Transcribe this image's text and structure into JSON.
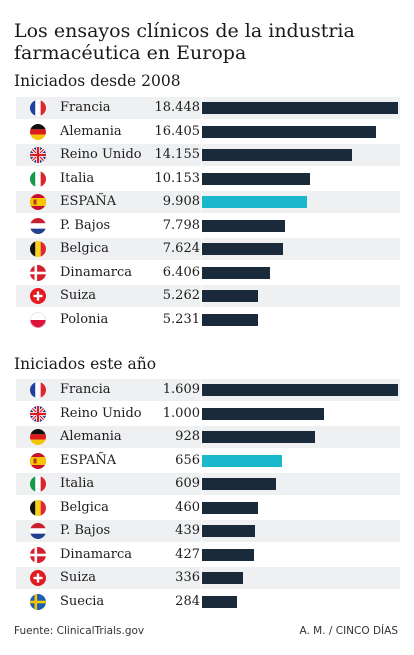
{
  "title": "Los ensayos clínicos de la industria farmacéutica en Europa",
  "footer": {
    "source": "Fuente: ClinicalTrials.gov",
    "credit": "A. M. / CINCO DÍAS"
  },
  "colors": {
    "bar": "#1a2a3b",
    "highlight": "#19b8cc",
    "row_shade": "#eef0f2"
  },
  "chart_data": [
    {
      "type": "bar",
      "orientation": "horizontal",
      "title": "Iniciados desde 2008",
      "highlight": "ESPAÑA",
      "categories": [
        "Francia",
        "Alemania",
        "Reino Unido",
        "Italia",
        "ESPAÑA",
        "P. Bajos",
        "Belgica",
        "Dinamarca",
        "Suiza",
        "Polonia"
      ],
      "value_labels": [
        "18.448",
        "16.405",
        "14.155",
        "10.153",
        "9.908",
        "7.798",
        "7.624",
        "6.406",
        "5.262",
        "5.231"
      ],
      "values": [
        18448,
        16405,
        14155,
        10153,
        9908,
        7798,
        7624,
        6406,
        5262,
        5231
      ],
      "flag_icons": [
        "flag-france",
        "flag-germany",
        "flag-uk",
        "flag-italy",
        "flag-spain",
        "flag-netherlands",
        "flag-belgium",
        "flag-denmark",
        "flag-switzerland",
        "flag-poland"
      ],
      "xlim": [
        0,
        18448
      ]
    },
    {
      "type": "bar",
      "orientation": "horizontal",
      "title": "Iniciados este año",
      "highlight": "ESPAÑA",
      "categories": [
        "Francia",
        "Reino Unido",
        "Alemania",
        "ESPAÑA",
        "Italia",
        "Belgica",
        "P. Bajos",
        "Dinamarca",
        "Suiza",
        "Suecia"
      ],
      "value_labels": [
        "1.609",
        "1.000",
        "928",
        "656",
        "609",
        "460",
        "439",
        "427",
        "336",
        "284"
      ],
      "values": [
        1609,
        1000,
        928,
        656,
        609,
        460,
        439,
        427,
        336,
        284
      ],
      "flag_icons": [
        "flag-france",
        "flag-uk",
        "flag-germany",
        "flag-spain",
        "flag-italy",
        "flag-belgium",
        "flag-netherlands",
        "flag-denmark",
        "flag-switzerland",
        "flag-sweden"
      ],
      "xlim": [
        0,
        1609
      ]
    }
  ]
}
